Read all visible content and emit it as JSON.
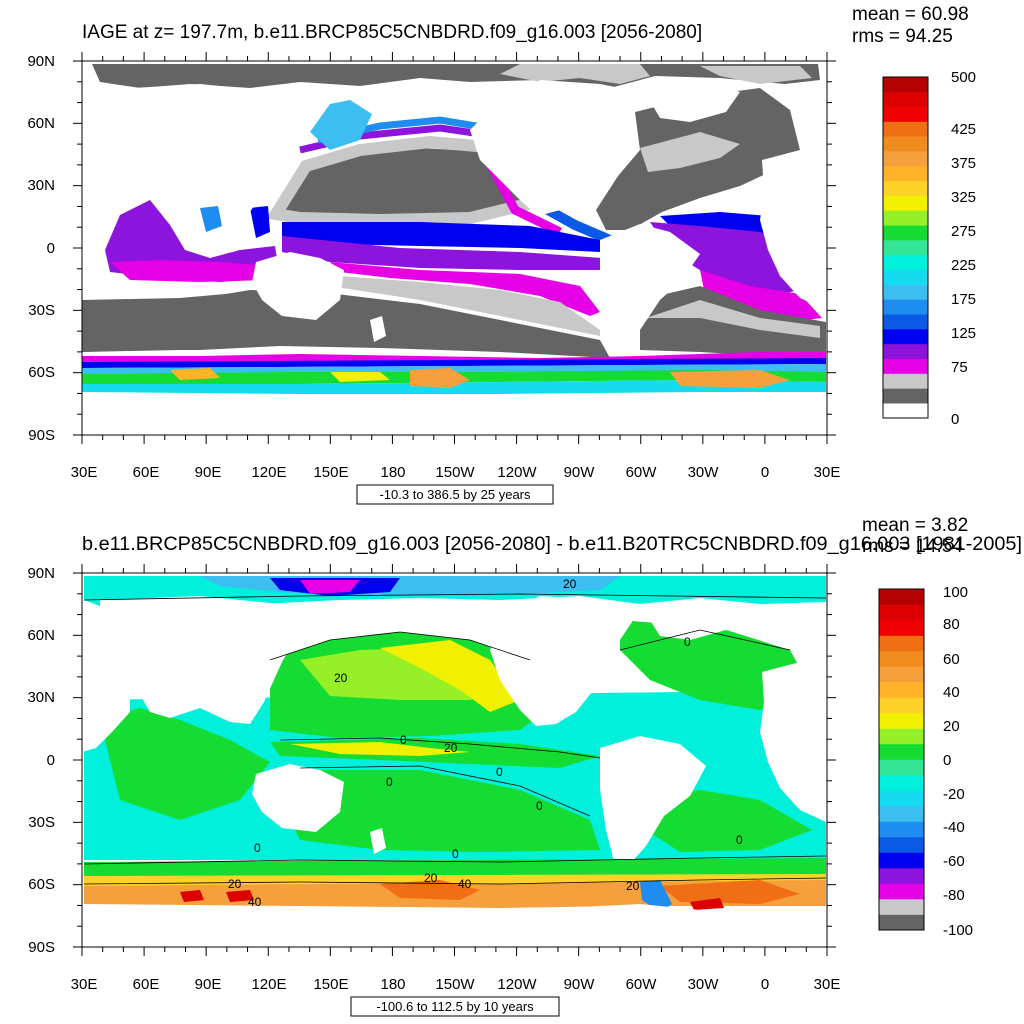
{
  "panels": [
    {
      "title": "IAGE at z= 197.7m, b.e11.BRCP85C5CNBDRD.f09_g16.003 [2056-2080]",
      "mean": "mean = 60.98",
      "rms": "rms = 94.25",
      "range_text": "-10.3 to 386.5 by 25 years",
      "lat_labels": [
        "90N",
        "60N",
        "30N",
        "0",
        "30S",
        "60S",
        "90S"
      ],
      "lon_labels": [
        "30E",
        "60E",
        "90E",
        "120E",
        "150E",
        "180",
        "150W",
        "120W",
        "90W",
        "60W",
        "30W",
        "0",
        "30E"
      ],
      "colorbar": {
        "labels": [
          "500",
          "425",
          "375",
          "325",
          "275",
          "225",
          "175",
          "125",
          "75",
          "0"
        ],
        "colors": [
          "#ffffff",
          "#646464",
          "#c8c8c8",
          "#e600e6",
          "#8c14dc",
          "#0000f0",
          "#0a5ae6",
          "#1e8cf0",
          "#3cbef0",
          "#14dcf0",
          "#00f0dc",
          "#32e696",
          "#14dc32",
          "#96f028",
          "#f0f000",
          "#ffd228",
          "#ffb428",
          "#f5a03c",
          "#f08c1e",
          "#f06e14",
          "#f00000",
          "#dc0000",
          "#b40000"
        ]
      },
      "contour_labels": []
    },
    {
      "title": "b.e11.BRCP85C5CNBDRD.f09_g16.003 [2056-2080] - b.e11.B20TRC5CNBDRD.f09_g16.003 [1981-2005]",
      "mean": "mean = 3.82",
      "rms": "rms = 14.54",
      "range_text": "-100.6 to 112.5 by 10 years",
      "lat_labels": [
        "90N",
        "60N",
        "30N",
        "0",
        "30S",
        "60S",
        "90S"
      ],
      "lon_labels": [
        "30E",
        "60E",
        "90E",
        "120E",
        "150E",
        "180",
        "150W",
        "120W",
        "90W",
        "60W",
        "30W",
        "0",
        "30E"
      ],
      "colorbar": {
        "labels": [
          "100",
          "80",
          "60",
          "40",
          "20",
          "0",
          "-20",
          "-40",
          "-60",
          "-80",
          "-100"
        ],
        "colors": [
          "#646464",
          "#c8c8c8",
          "#e600e6",
          "#8c14dc",
          "#0000f0",
          "#0a5ae6",
          "#1e8cf0",
          "#3cbef0",
          "#14dcf0",
          "#00f0dc",
          "#32e696",
          "#14dc32",
          "#96f028",
          "#f0f000",
          "#ffd228",
          "#ffb428",
          "#f5a03c",
          "#f08c1e",
          "#f06e14",
          "#f00000",
          "#dc0000",
          "#b40000"
        ]
      },
      "contour_labels": [
        "20",
        "20",
        "0",
        "20",
        "0",
        "0",
        "0",
        "0",
        "0",
        "0",
        "20",
        "40",
        "20",
        "40",
        "20",
        "0"
      ]
    }
  ]
}
